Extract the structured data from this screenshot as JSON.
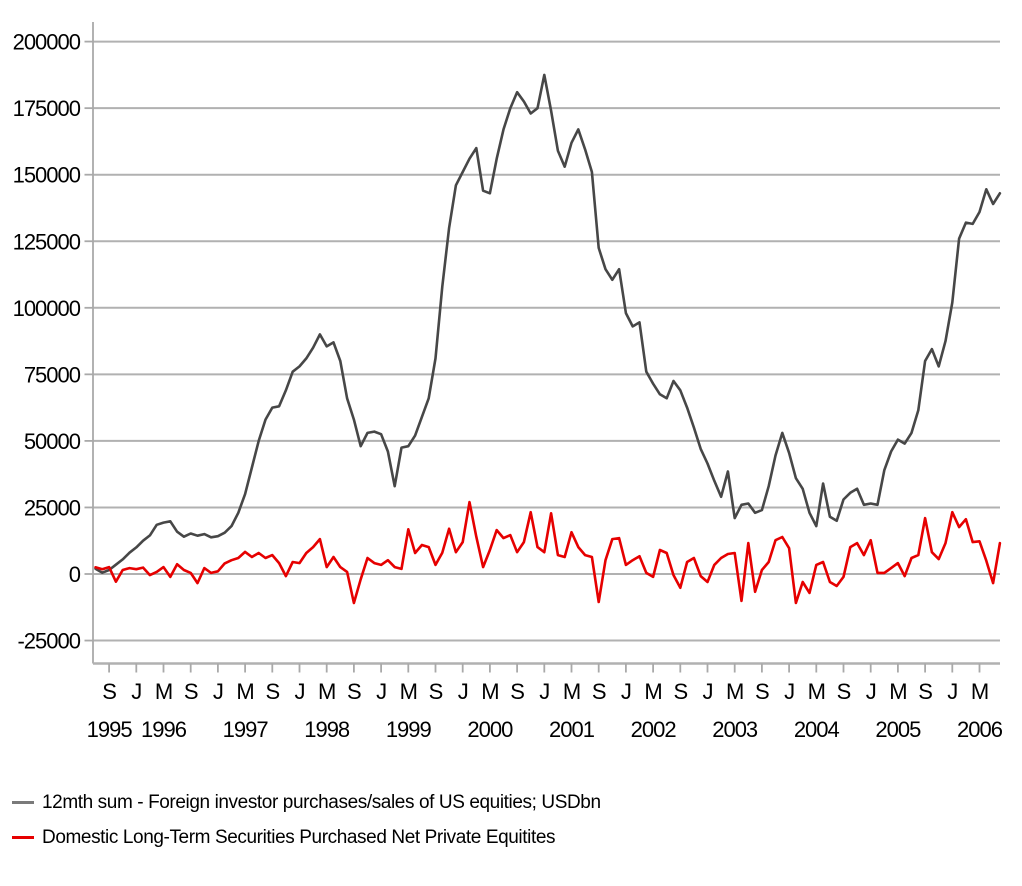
{
  "chart_data": {
    "type": "line",
    "title": "",
    "grid": true,
    "background": "#ffffff",
    "colors": {
      "grid": "#b1b1b1",
      "axis": "#a9a9a9",
      "text": "#000000"
    },
    "x_axis": {
      "unit": "month",
      "start": "1995-07",
      "end": "2006-08",
      "ticks": [
        {
          "i": 2,
          "label": "S"
        },
        {
          "i": 6,
          "label": "J"
        },
        {
          "i": 10,
          "label": "M"
        },
        {
          "i": 14,
          "label": "S"
        },
        {
          "i": 18,
          "label": "J"
        },
        {
          "i": 22,
          "label": "M"
        },
        {
          "i": 26,
          "label": "S"
        },
        {
          "i": 30,
          "label": "J"
        },
        {
          "i": 34,
          "label": "M"
        },
        {
          "i": 38,
          "label": "S"
        },
        {
          "i": 42,
          "label": "J"
        },
        {
          "i": 46,
          "label": "M"
        },
        {
          "i": 50,
          "label": "S"
        },
        {
          "i": 54,
          "label": "J"
        },
        {
          "i": 58,
          "label": "M"
        },
        {
          "i": 62,
          "label": "S"
        },
        {
          "i": 66,
          "label": "J"
        },
        {
          "i": 70,
          "label": "M"
        },
        {
          "i": 74,
          "label": "S"
        },
        {
          "i": 78,
          "label": "J"
        },
        {
          "i": 82,
          "label": "M"
        },
        {
          "i": 86,
          "label": "S"
        },
        {
          "i": 90,
          "label": "J"
        },
        {
          "i": 94,
          "label": "M"
        },
        {
          "i": 98,
          "label": "S"
        },
        {
          "i": 102,
          "label": "J"
        },
        {
          "i": 106,
          "label": "M"
        },
        {
          "i": 110,
          "label": "S"
        },
        {
          "i": 114,
          "label": "J"
        },
        {
          "i": 118,
          "label": "M"
        },
        {
          "i": 122,
          "label": "S"
        },
        {
          "i": 126,
          "label": "J"
        },
        {
          "i": 130,
          "label": "M"
        }
      ],
      "year_ticks": [
        {
          "i": 2,
          "label": "1995"
        },
        {
          "i": 10,
          "label": "1996"
        },
        {
          "i": 22,
          "label": "1997"
        },
        {
          "i": 34,
          "label": "1998"
        },
        {
          "i": 46,
          "label": "1999"
        },
        {
          "i": 58,
          "label": "2000"
        },
        {
          "i": 70,
          "label": "2001"
        },
        {
          "i": 82,
          "label": "2002"
        },
        {
          "i": 94,
          "label": "2003"
        },
        {
          "i": 106,
          "label": "2004"
        },
        {
          "i": 118,
          "label": "2005"
        },
        {
          "i": 130,
          "label": "2006"
        }
      ]
    },
    "y_axis": {
      "lim": [
        -25000,
        200000
      ],
      "ticks": [
        -25000,
        0,
        25000,
        50000,
        75000,
        100000,
        125000,
        150000,
        175000,
        200000
      ]
    },
    "series": [
      {
        "name": "12mth sum - Foreign investor purchases/sales of US equities; USDbn",
        "color": "#474747",
        "values": [
          2000,
          500,
          1500,
          3500,
          5500,
          8000,
          10000,
          12500,
          14500,
          18500,
          19300,
          19800,
          15900,
          14000,
          15200,
          14400,
          15000,
          13800,
          14200,
          15500,
          18000,
          23000,
          30000,
          40000,
          50000,
          58000,
          62500,
          63000,
          69000,
          76000,
          78000,
          81000,
          85000,
          90000,
          85500,
          87000,
          80000,
          66000,
          58000,
          48000,
          53000,
          53500,
          52500,
          46000,
          33000,
          47500,
          48000,
          52000,
          59000,
          66000,
          81000,
          108000,
          130000,
          146000,
          151000,
          156000,
          160000,
          144000,
          143000,
          156000,
          167000,
          175000,
          181000,
          177500,
          173000,
          175000,
          187500,
          174000,
          159000,
          153000,
          162000,
          167000,
          159500,
          151000,
          122500,
          114500,
          110500,
          114500,
          98000,
          93000,
          94500,
          76000,
          71500,
          67500,
          66000,
          72500,
          69000,
          62500,
          55000,
          47000,
          41500,
          35000,
          29000,
          38500,
          21000,
          26000,
          26500,
          23000,
          24000,
          33000,
          44500,
          53000,
          45500,
          36000,
          32000,
          23000,
          18000,
          34000,
          21500,
          20000,
          28000,
          30500,
          32000,
          26000,
          26500,
          26000,
          39000,
          46000,
          50500,
          49000,
          53000,
          61500,
          80000,
          84500,
          78000,
          87500,
          102000,
          126000,
          132000,
          131500,
          136000,
          144500,
          139000,
          143000
        ]
      },
      {
        "name": "Domestic Long-Term Securities Purchased Net Private Equitites",
        "color": "#e60000",
        "values": [
          2500,
          1800,
          2600,
          -2900,
          1500,
          2200,
          1800,
          2400,
          -400,
          800,
          2600,
          -1100,
          3700,
          1500,
          400,
          -3400,
          2200,
          400,
          1000,
          4000,
          5200,
          6000,
          8300,
          6400,
          7900,
          6000,
          7100,
          4100,
          -800,
          4500,
          4100,
          7900,
          10100,
          13100,
          2600,
          6400,
          2600,
          800,
          -10900,
          -2000,
          6000,
          4100,
          3400,
          5200,
          2600,
          1900,
          16800,
          7900,
          10900,
          10100,
          3400,
          8000,
          17000,
          8200,
          12000,
          27000,
          14000,
          2600,
          9000,
          16500,
          13500,
          14600,
          8200,
          12000,
          23200,
          10100,
          8200,
          22800,
          7100,
          6400,
          15700,
          10100,
          7100,
          6400,
          -10500,
          5200,
          13100,
          13500,
          3400,
          5200,
          6700,
          400,
          -1100,
          9000,
          7900,
          -400,
          -5200,
          4500,
          6000,
          -800,
          -3000,
          3400,
          6000,
          7500,
          7900,
          -10100,
          11600,
          -6700,
          1500,
          4500,
          12700,
          13900,
          9700,
          -10900,
          -3000,
          -7100,
          3400,
          4500,
          -3000,
          -4500,
          -1100,
          10100,
          11600,
          7100,
          12700,
          400,
          400,
          2200,
          4100,
          -800,
          6000,
          7100,
          21000,
          8200,
          5600,
          11600,
          23200,
          17600,
          20600,
          12000,
          12300,
          5000,
          -3400,
          11600
        ]
      }
    ],
    "legend": {
      "position": "bottom-left",
      "items": [
        {
          "label": "12mth sum - Foreign investor purchases/sales of US equities; USDbn",
          "swatch_color": "#7a7a7a"
        },
        {
          "label": "Domestic Long-Term Securities Purchased Net Private Equitites",
          "swatch_color": "#e60000"
        }
      ]
    }
  }
}
